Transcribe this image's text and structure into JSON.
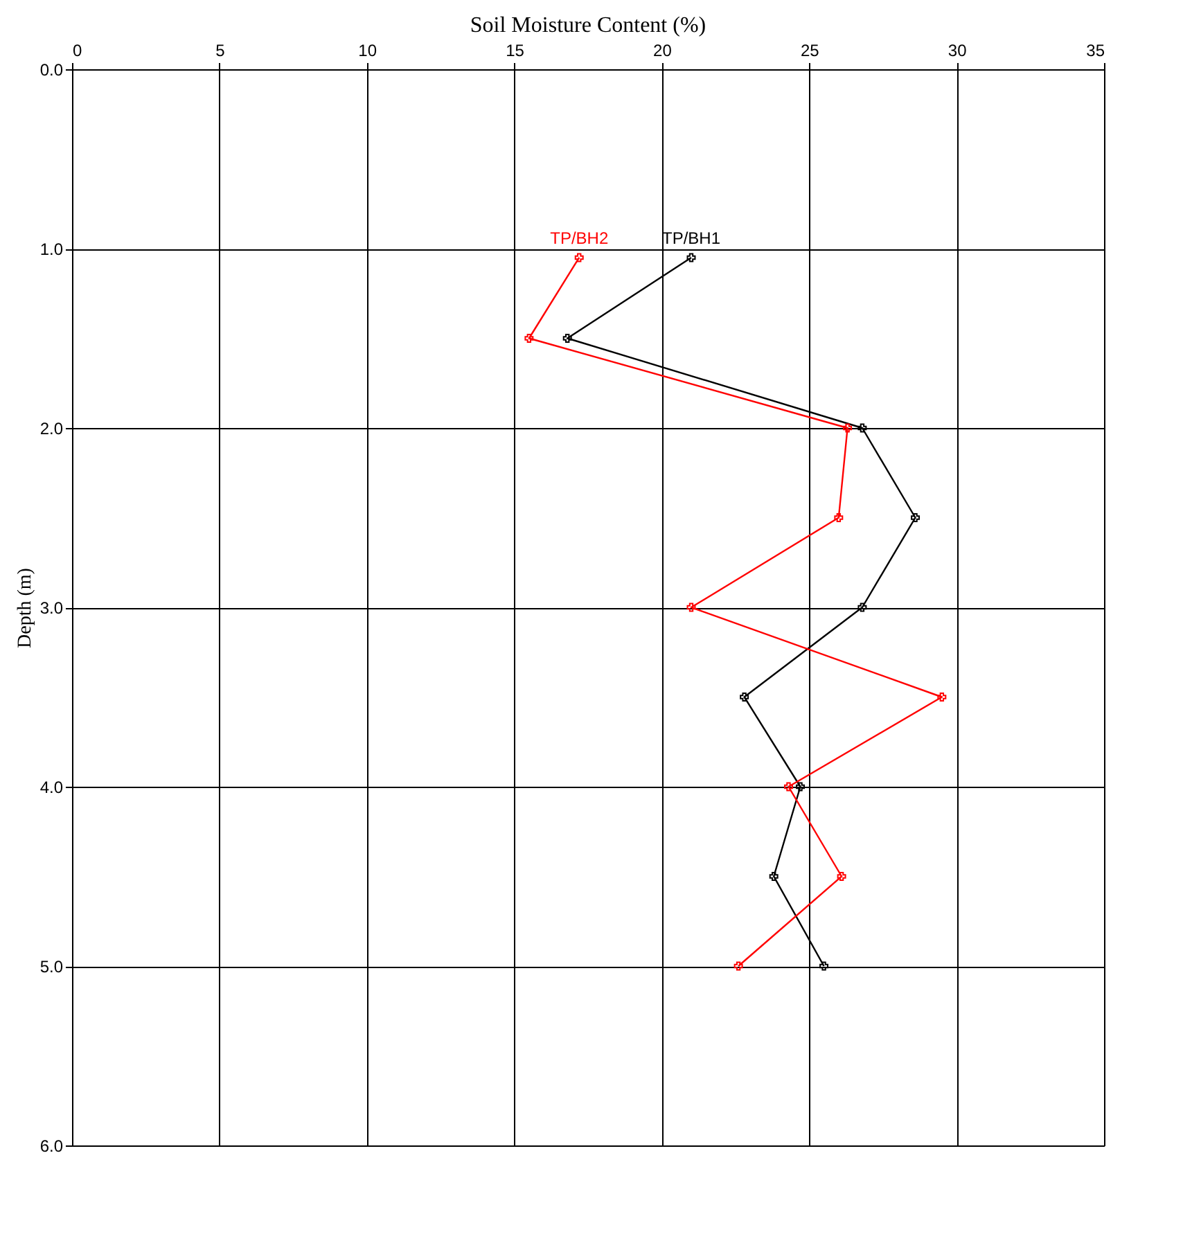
{
  "chart_data": {
    "type": "line",
    "title": "Soil Moisture Content (%)",
    "ylabel": "Depth (m)",
    "xlim": [
      0,
      35
    ],
    "xticks": [
      0,
      5,
      10,
      15,
      20,
      25,
      30,
      35
    ],
    "ylim": [
      6,
      0
    ],
    "yticks": [
      {
        "value": 0,
        "label": "0.0"
      },
      {
        "value": 1,
        "label": "1.0"
      },
      {
        "value": 2,
        "label": "2.0"
      },
      {
        "value": 3,
        "label": "3.0"
      },
      {
        "value": 4,
        "label": "4.0"
      },
      {
        "value": 5,
        "label": "5.0"
      },
      {
        "value": 6,
        "label": "6.0"
      }
    ],
    "grid": true,
    "marker": "cross",
    "line_style": "solid",
    "series": [
      {
        "name": "TP/BH1",
        "color": "#000000",
        "x": [
          21.0,
          16.8,
          26.8,
          28.6,
          26.8,
          22.8,
          24.7,
          23.8,
          25.5
        ],
        "values": [
          1.05,
          1.5,
          2.0,
          2.5,
          3.0,
          3.5,
          4.0,
          4.5,
          5.0
        ]
      },
      {
        "name": "TP/BH2",
        "color": "#ff0000",
        "x": [
          17.2,
          15.5,
          26.3,
          26.0,
          21.0,
          29.5,
          24.3,
          26.1,
          22.6
        ],
        "values": [
          1.05,
          1.5,
          2.0,
          2.5,
          3.0,
          3.5,
          4.0,
          4.5,
          5.0
        ]
      }
    ]
  }
}
